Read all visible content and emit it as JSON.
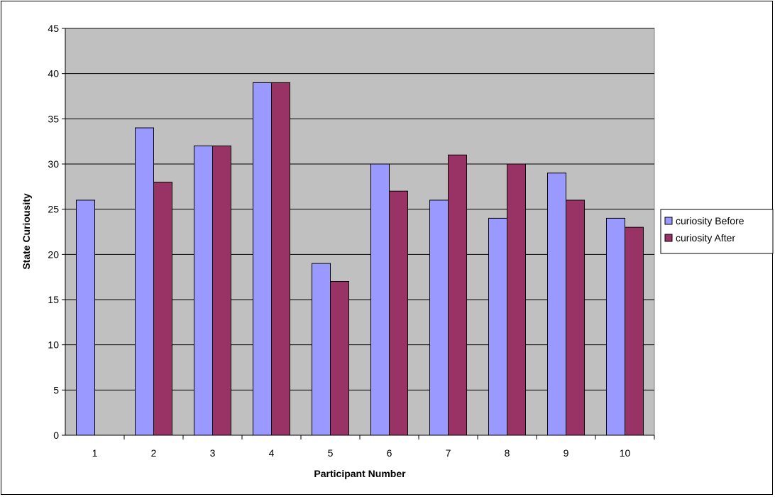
{
  "chart_data": {
    "type": "bar",
    "categories": [
      "1",
      "2",
      "3",
      "4",
      "5",
      "6",
      "7",
      "8",
      "9",
      "10"
    ],
    "series": [
      {
        "name": "curiosity Before",
        "values": [
          26,
          34,
          32,
          39,
          19,
          30,
          26,
          24,
          29,
          24
        ],
        "color": "#9999ff"
      },
      {
        "name": "curiosity After",
        "values": [
          null,
          28,
          32,
          39,
          17,
          27,
          31,
          30,
          26,
          23
        ],
        "color": "#993366"
      }
    ],
    "xlabel": "Participant Number",
    "ylabel": "State Curiousity",
    "ylim": [
      0,
      45
    ],
    "yticks": [
      0,
      5,
      10,
      15,
      20,
      25,
      30,
      35,
      40,
      45
    ],
    "grid": true,
    "plot_background": "#c0c0c0",
    "legend_position": "right"
  }
}
